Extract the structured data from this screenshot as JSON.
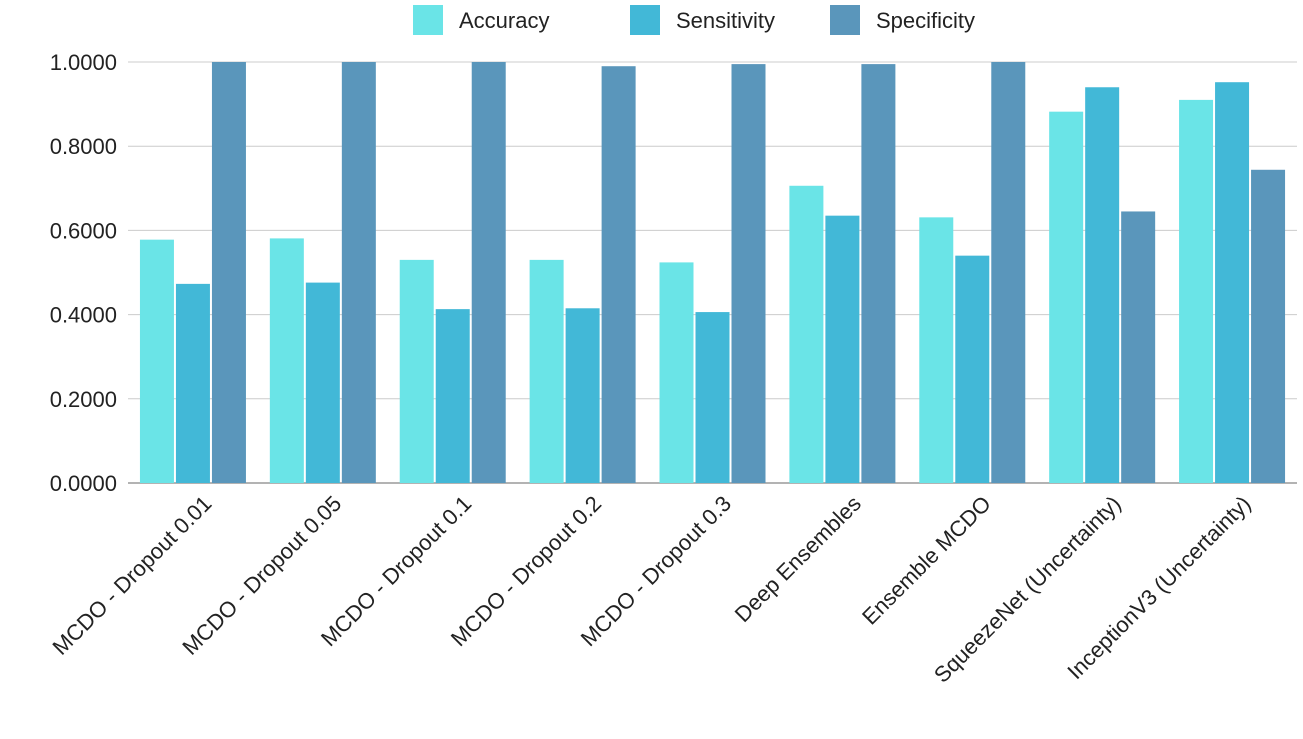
{
  "chart_data": {
    "type": "bar",
    "categories": [
      "MCDO - Dropout 0.01",
      "MCDO - Dropout 0.05",
      "MCDO - Dropout 0.1",
      "MCDO - Dropout 0.2",
      "MCDO - Dropout 0.3",
      "Deep Ensembles",
      "Ensemble MCDO",
      "SqueezeNet (Uncertainty)",
      "InceptionV3 (Uncertainty)"
    ],
    "series": [
      {
        "name": "Accuracy",
        "color": "#6ae4e7",
        "values": [
          0.578,
          0.581,
          0.53,
          0.53,
          0.524,
          0.706,
          0.631,
          0.882,
          0.91
        ]
      },
      {
        "name": "Sensitivity",
        "color": "#42b8d7",
        "values": [
          0.473,
          0.476,
          0.413,
          0.415,
          0.406,
          0.635,
          0.54,
          0.94,
          0.952
        ]
      },
      {
        "name": "Specificity",
        "color": "#5a96bb",
        "values": [
          1.0,
          1.0,
          1.0,
          0.99,
          0.995,
          0.995,
          1.0,
          0.645,
          0.744
        ]
      }
    ],
    "yticks": [
      "0.0000",
      "0.2000",
      "0.4000",
      "0.6000",
      "0.8000",
      "1.0000"
    ],
    "ylim": [
      0,
      1
    ],
    "grid": true,
    "legend_position": "top-center"
  }
}
